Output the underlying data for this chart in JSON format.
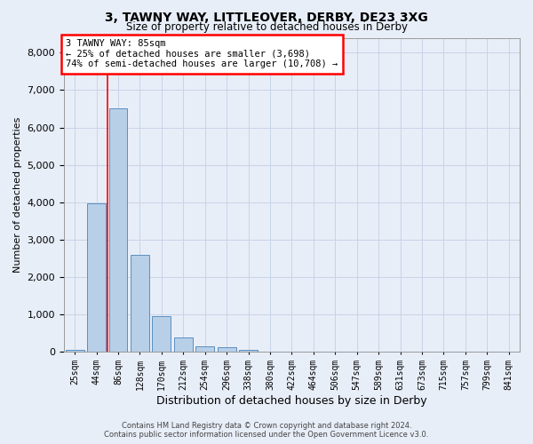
{
  "title1": "3, TAWNY WAY, LITTLEOVER, DERBY, DE23 3XG",
  "title2": "Size of property relative to detached houses in Derby",
  "xlabel": "Distribution of detached houses by size in Derby",
  "ylabel": "Number of detached properties",
  "categories": [
    "25sqm",
    "44sqm",
    "86sqm",
    "128sqm",
    "170sqm",
    "212sqm",
    "254sqm",
    "296sqm",
    "338sqm",
    "380sqm",
    "422sqm",
    "464sqm",
    "506sqm",
    "547sqm",
    "589sqm",
    "631sqm",
    "673sqm",
    "715sqm",
    "757sqm",
    "799sqm",
    "841sqm"
  ],
  "values": [
    50,
    3980,
    6520,
    2580,
    950,
    390,
    155,
    110,
    50,
    10,
    0,
    0,
    0,
    0,
    0,
    0,
    0,
    0,
    0,
    0,
    0
  ],
  "bar_color": "#b8cfe8",
  "bar_edge_color": "#5a8fc0",
  "vline_color": "red",
  "vline_x": 1.5,
  "annotation_text": "3 TAWNY WAY: 85sqm\n← 25% of detached houses are smaller (3,698)\n74% of semi-detached houses are larger (10,708) →",
  "annotation_box_color": "white",
  "annotation_box_edge": "red",
  "grid_color": "#c8d4e8",
  "bg_color": "#e8eef8",
  "footer1": "Contains HM Land Registry data © Crown copyright and database right 2024.",
  "footer2": "Contains public sector information licensed under the Open Government Licence v3.0.",
  "ylim": [
    0,
    8400
  ],
  "yticks": [
    0,
    1000,
    2000,
    3000,
    4000,
    5000,
    6000,
    7000,
    8000
  ]
}
